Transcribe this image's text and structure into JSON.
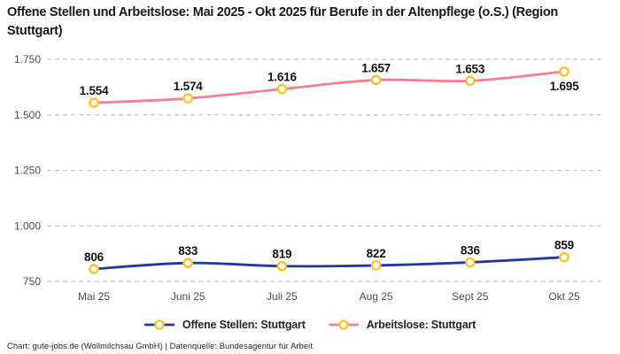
{
  "chart_data": {
    "type": "line",
    "title": "Offene Stellen und Arbeitslose: Mai 2025 - Okt 2025 für Berufe in der Altenpflege (o.S.) (Region Stuttgart)",
    "categories": [
      "Mai 25",
      "Juni 25",
      "Juli 25",
      "Aug 25",
      "Sept 25",
      "Okt 25"
    ],
    "series": [
      {
        "name": "Offene Stellen: Stuttgart",
        "color_key": "blue",
        "values": [
          806,
          833,
          819,
          822,
          836,
          859
        ],
        "labels": [
          "806",
          "833",
          "819",
          "822",
          "836",
          "859"
        ],
        "label_positions": [
          "above",
          "above",
          "above",
          "above",
          "above",
          "above"
        ]
      },
      {
        "name": "Arbeitslose: Stuttgart",
        "color_key": "pink",
        "values": [
          1554,
          1574,
          1616,
          1657,
          1653,
          1695
        ],
        "labels": [
          "1.554",
          "1.574",
          "1.616",
          "1.657",
          "1.653",
          "1.695"
        ],
        "label_positions": [
          "above",
          "above",
          "above",
          "above",
          "above",
          "below"
        ]
      }
    ],
    "y_ticks": [
      {
        "value": 750,
        "label": "750"
      },
      {
        "value": 1000,
        "label": "1.000"
      },
      {
        "value": 1250,
        "label": "1.250"
      },
      {
        "value": 1500,
        "label": "1.500"
      },
      {
        "value": 1750,
        "label": "1.750"
      }
    ],
    "ylim": [
      750,
      1750
    ],
    "xlabel": "",
    "ylabel": "",
    "grid": "horizontal-dashed",
    "legend_position": "bottom-center",
    "number_format": "de-DE"
  },
  "colors": {
    "blue": "#21399b",
    "pink": "#f77f93",
    "marker": "#fcc32a",
    "marker_fill": "#ffffff",
    "grid": "#c4c4c4",
    "axis_text": "#4d4d4d",
    "data_label": "#141414"
  },
  "footer": {
    "source_line": "Chart: gute-jobs.de (Wollmilchsau GmbH) | Datenquelle: Bundesagentur für Arbeit"
  }
}
